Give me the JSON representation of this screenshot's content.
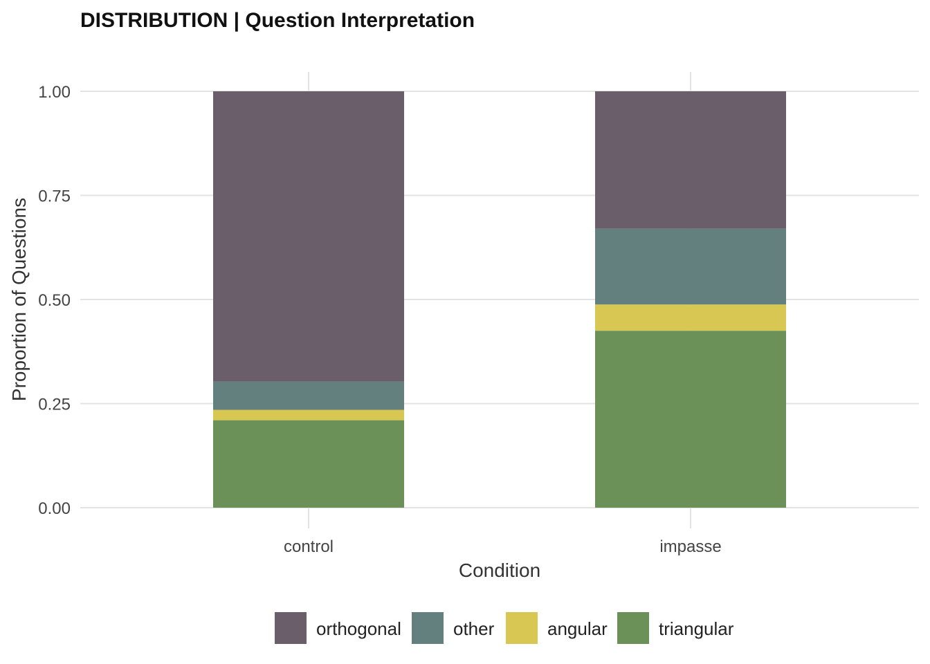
{
  "chart_data": {
    "type": "bar",
    "stacked": true,
    "title": "DISTRIBUTION | Question Interpretation",
    "xlabel": "Condition",
    "ylabel": "Proportion of Questions",
    "categories": [
      "control",
      "impasse"
    ],
    "ylim": [
      0,
      1
    ],
    "yticks": [
      "0.00",
      "0.25",
      "0.50",
      "0.75",
      "1.00"
    ],
    "ytick_values": [
      0,
      0.25,
      0.5,
      0.75,
      1
    ],
    "grid": true,
    "legend_position": "bottom",
    "series": [
      {
        "name": "triangular",
        "color": "#6b9158",
        "values": [
          0.21,
          0.425
        ]
      },
      {
        "name": "angular",
        "color": "#d9c753",
        "values": [
          0.025,
          0.063
        ]
      },
      {
        "name": "other",
        "color": "#637f7e",
        "values": [
          0.068,
          0.182
        ]
      },
      {
        "name": "orthogonal",
        "color": "#6b5e6b",
        "values": [
          0.697,
          0.33
        ]
      }
    ],
    "legend_order": [
      "orthogonal",
      "other",
      "angular",
      "triangular"
    ]
  }
}
